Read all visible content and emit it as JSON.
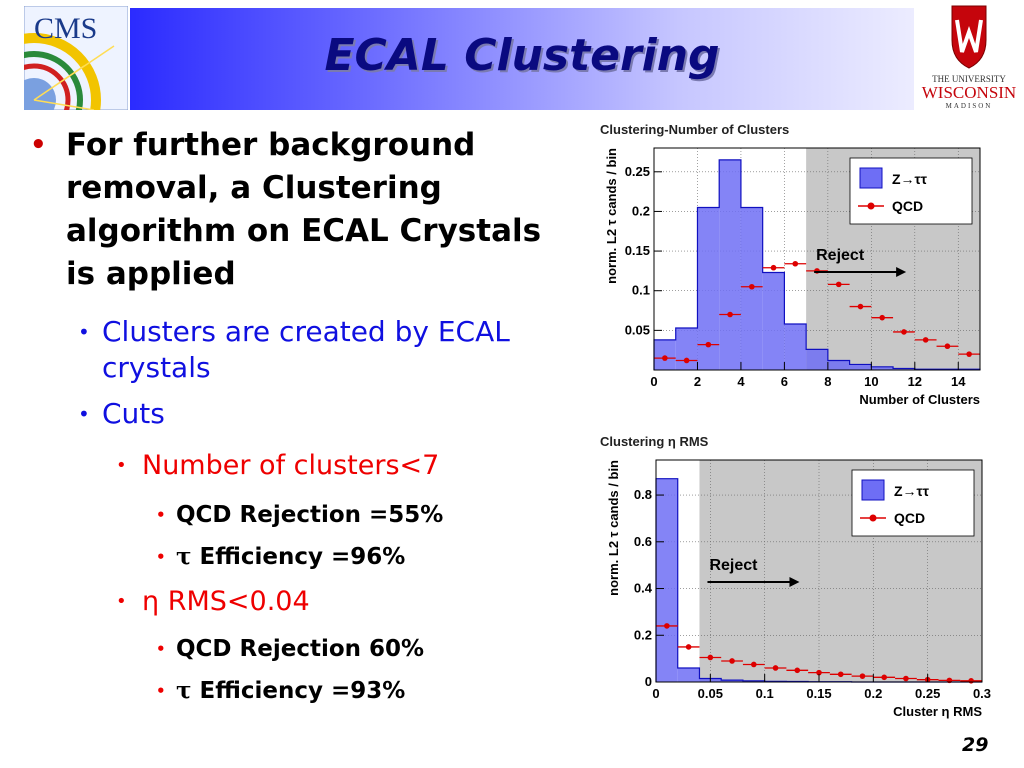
{
  "slide": {
    "title": "ECAL Clustering",
    "page_number": "29"
  },
  "logos": {
    "cms_text": "CMS",
    "uw_line1": "THE UNIVERSITY",
    "uw_line2": "WISCONSIN",
    "uw_line3": "MADISON",
    "colors": {
      "cms_blue": "#1a3a8a",
      "uw_red": "#c5050c"
    }
  },
  "bullets": {
    "main": "For further background removal, a Clustering algorithm on ECAL Crystals is applied",
    "sub1": "Clusters are created by ECAL crystals",
    "sub2": "Cuts",
    "cut1": "Number of clusters<7",
    "cut1_rej": "QCD Rejection =55%",
    "cut1_eff_symbol": "τ",
    "cut1_eff": "Efficiency  =96%",
    "cut2": "η RMS<0.04",
    "cut2_rej": "QCD Rejection 60%",
    "cut2_eff_symbol": "τ",
    "cut2_eff": "Efficiency  =93%"
  },
  "chart_data": [
    {
      "type": "bar",
      "title": "Clustering-Number of Clusters",
      "xlabel": "Number of Clusters",
      "ylabel": "norm. L2 τ cands / bin",
      "xlim": [
        0,
        15
      ],
      "ylim": [
        0,
        0.28
      ],
      "xticks": [
        0,
        2,
        4,
        6,
        8,
        10,
        12,
        14
      ],
      "yticks": [
        0.05,
        0.1,
        0.15,
        0.2,
        0.25
      ],
      "ytick_labels": [
        "0.05",
        "0.1",
        "0.15",
        "0.2",
        "0.25"
      ],
      "bin_edges": [
        0,
        1,
        2,
        3,
        4,
        5,
        6,
        7,
        8,
        9,
        10,
        11,
        12,
        13,
        14,
        15
      ],
      "series": [
        {
          "name": "Z→ττ",
          "kind": "histogram",
          "color": "#6e6ef5",
          "values": [
            0.038,
            0.053,
            0.205,
            0.265,
            0.205,
            0.123,
            0.058,
            0.026,
            0.012,
            0.007,
            0.004,
            0.002,
            0.001,
            0.001,
            0.001
          ]
        },
        {
          "name": "QCD",
          "kind": "points",
          "color": "#dd0000",
          "values": [
            0.015,
            0.012,
            0.032,
            0.07,
            0.105,
            0.129,
            0.134,
            0.125,
            0.108,
            0.08,
            0.066,
            0.048,
            0.038,
            0.03,
            0.02
          ]
        }
      ],
      "reject_region": {
        "from": 7,
        "label": "Reject"
      },
      "legend": {
        "position": "top-right",
        "z_label": "Z→ττ",
        "qcd_label": "QCD"
      },
      "grid": true
    },
    {
      "type": "bar",
      "title": "Clustering η RMS",
      "xlabel": "Cluster η RMS",
      "ylabel": "norm. L2 τ cands / bin",
      "xlim": [
        0,
        0.3
      ],
      "ylim": [
        0,
        0.95
      ],
      "xticks": [
        0,
        0.05,
        0.1,
        0.15,
        0.2,
        0.25,
        0.3
      ],
      "xtick_labels": [
        "0",
        "0.05",
        "0.1",
        "0.15",
        "0.2",
        "0.25",
        "0.3"
      ],
      "yticks": [
        0,
        0.2,
        0.4,
        0.6,
        0.8
      ],
      "ytick_labels": [
        "0",
        "0.2",
        "0.4",
        "0.6",
        "0.8"
      ],
      "bin_edges": [
        0,
        0.02,
        0.04,
        0.06,
        0.08,
        0.1,
        0.12,
        0.14,
        0.16,
        0.18,
        0.2,
        0.22,
        0.24,
        0.26,
        0.28,
        0.3
      ],
      "series": [
        {
          "name": "Z→ττ",
          "kind": "histogram",
          "color": "#6e6ef5",
          "values": [
            0.87,
            0.06,
            0.015,
            0.008,
            0.005,
            0.003,
            0.002,
            0.001,
            0.001,
            0,
            0,
            0,
            0,
            0,
            0
          ]
        },
        {
          "name": "QCD",
          "kind": "points",
          "color": "#dd0000",
          "values": [
            0.24,
            0.15,
            0.105,
            0.09,
            0.075,
            0.06,
            0.05,
            0.04,
            0.033,
            0.025,
            0.02,
            0.015,
            0.01,
            0.007,
            0.005
          ]
        }
      ],
      "reject_region": {
        "from": 0.04,
        "label": "Reject"
      },
      "legend": {
        "position": "top-right",
        "z_label": "Z→ττ",
        "qcd_label": "QCD"
      },
      "grid": true
    }
  ]
}
